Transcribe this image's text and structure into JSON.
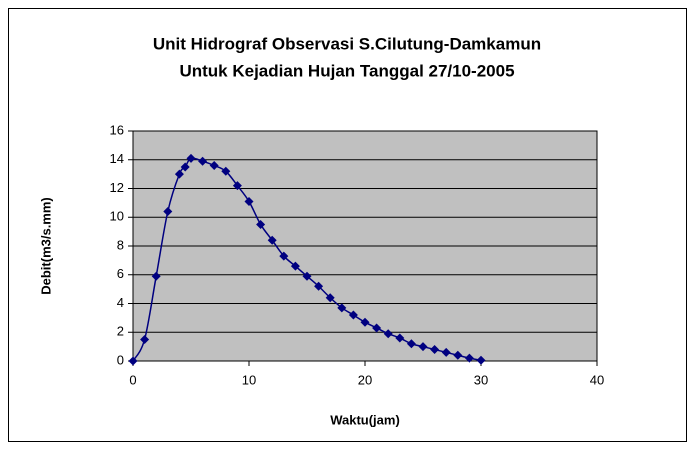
{
  "chart_data": {
    "type": "scatter",
    "title": [
      "Unit Hidrograf Observasi S.Cilutung-Damkamun",
      "Untuk Kejadian Hujan Tanggal 27/10-2005"
    ],
    "x_label": "Waktu(jam)",
    "y_label": "Debit(m3/s.mm)",
    "x": [
      0,
      1,
      2,
      3,
      4,
      4.5,
      5,
      6,
      7,
      8,
      9,
      10,
      11,
      12,
      13,
      14,
      15,
      16,
      17,
      18,
      19,
      20,
      21,
      22,
      23,
      24,
      25,
      26,
      27,
      28,
      29,
      30
    ],
    "values": [
      0,
      1.5,
      5.9,
      10.4,
      13.0,
      13.5,
      14.1,
      13.9,
      13.6,
      13.2,
      12.2,
      11.1,
      9.5,
      8.4,
      7.3,
      6.6,
      5.9,
      5.2,
      4.4,
      3.7,
      3.2,
      2.7,
      2.3,
      1.9,
      1.6,
      1.2,
      1.0,
      0.8,
      0.6,
      0.4,
      0.2,
      0.05
    ],
    "color": "#000080",
    "line": "smooth",
    "marker": "diamond",
    "plot_background": "#c0c0c0",
    "xlim": [
      0,
      40
    ],
    "xticks": [
      0,
      10,
      20,
      30,
      40
    ],
    "ylim": [
      0,
      16
    ],
    "yticks": [
      0,
      2,
      4,
      6,
      8,
      10,
      12,
      14,
      16
    ],
    "grid": true
  }
}
